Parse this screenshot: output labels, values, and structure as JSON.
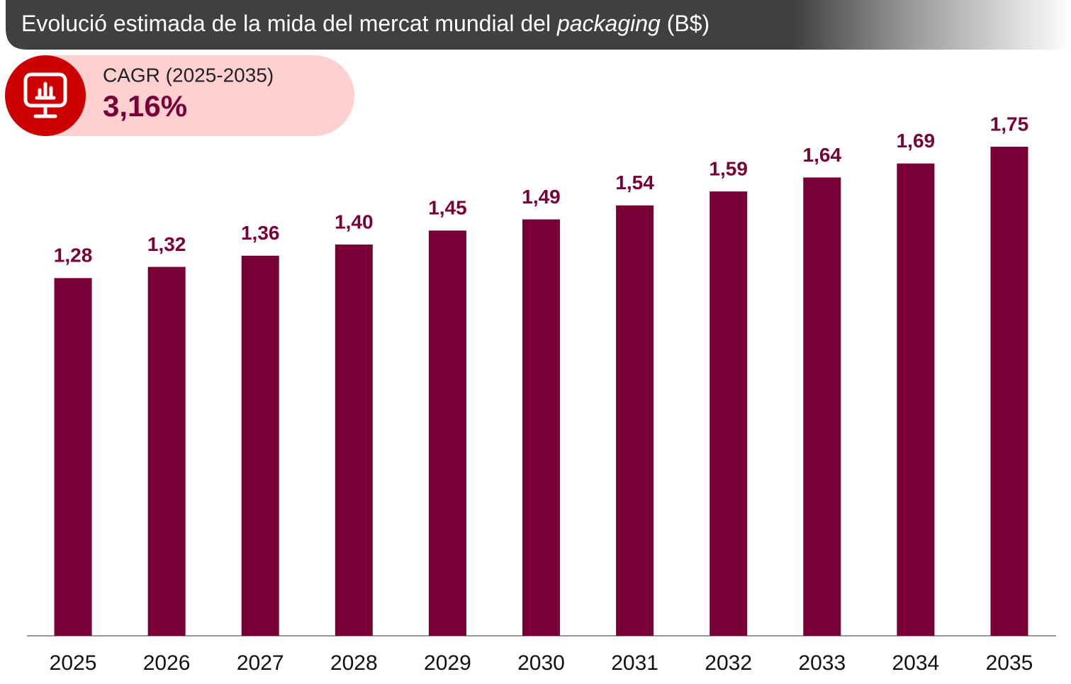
{
  "chart_data": {
    "type": "bar",
    "title": [
      "Evolució estimada de la mida del mercat mundial del ",
      "packaging",
      " (B$)"
    ],
    "annotation": {
      "label": "CAGR (2025-2035)",
      "value": "3,16%"
    },
    "categories": [
      "2025",
      "2026",
      "2027",
      "2028",
      "2029",
      "2030",
      "2031",
      "2032",
      "2033",
      "2034",
      "2035"
    ],
    "values": [
      1.28,
      1.32,
      1.36,
      1.4,
      1.45,
      1.49,
      1.54,
      1.59,
      1.64,
      1.69,
      1.75
    ],
    "value_labels": [
      "1,28",
      "1,32",
      "1,36",
      "1,40",
      "1,45",
      "1,49",
      "1,54",
      "1,59",
      "1,64",
      "1,69",
      "1,75"
    ],
    "color": "#780037",
    "ylim": [
      0,
      1.75
    ]
  }
}
